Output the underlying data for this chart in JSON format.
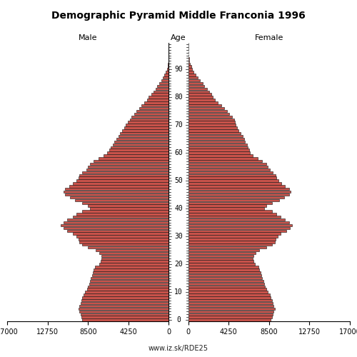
{
  "title": "Demographic Pyramid Middle Franconia 1996",
  "male_label": "Male",
  "female_label": "Female",
  "age_label": "Age",
  "url": "www.iz.sk/RDE25",
  "xlim": 17000,
  "bar_color": "#C8524A",
  "bar_edge_color": "#111111",
  "bar_linewidth": 0.4,
  "background_color": "#ffffff",
  "male": [
    9100,
    9200,
    9300,
    9400,
    9500,
    9400,
    9300,
    9200,
    9100,
    9000,
    8800,
    8600,
    8500,
    8400,
    8300,
    8200,
    8100,
    8000,
    7900,
    7800,
    7300,
    7200,
    7100,
    7100,
    7300,
    7700,
    8500,
    9100,
    9400,
    9500,
    9700,
    10100,
    10700,
    11100,
    11400,
    11100,
    10700,
    10100,
    9700,
    9100,
    8300,
    8500,
    9100,
    9900,
    10400,
    10900,
    11100,
    10900,
    10500,
    10100,
    9700,
    9500,
    9400,
    9100,
    8700,
    8500,
    8300,
    7900,
    7400,
    6900,
    6500,
    6300,
    6100,
    5900,
    5700,
    5500,
    5300,
    5100,
    4900,
    4700,
    4500,
    4300,
    4100,
    3900,
    3600,
    3400,
    3100,
    2900,
    2600,
    2300,
    2100,
    1800,
    1600,
    1400,
    1200,
    1000,
    800,
    600,
    450,
    300,
    200,
    130,
    80,
    50,
    30,
    15,
    8,
    4,
    2,
    1
  ],
  "female": [
    8700,
    8800,
    8900,
    9000,
    9100,
    9000,
    8900,
    8800,
    8700,
    8600,
    8400,
    8200,
    8100,
    8000,
    7900,
    7800,
    7700,
    7600,
    7500,
    7400,
    7000,
    6900,
    6800,
    6900,
    7100,
    7500,
    8200,
    8800,
    9100,
    9200,
    9400,
    9700,
    10300,
    10700,
    10900,
    10600,
    10200,
    9700,
    9300,
    8800,
    8000,
    8200,
    8800,
    9600,
    10100,
    10600,
    10800,
    10600,
    10200,
    9800,
    9500,
    9300,
    9200,
    8900,
    8600,
    8400,
    8200,
    7800,
    7300,
    6800,
    6500,
    6400,
    6300,
    6200,
    6000,
    5900,
    5700,
    5500,
    5300,
    5100,
    5000,
    4900,
    4800,
    4600,
    4300,
    4100,
    3800,
    3500,
    3100,
    2800,
    2600,
    2400,
    2200,
    2000,
    1700,
    1500,
    1200,
    1000,
    750,
    550,
    420,
    300,
    210,
    140,
    80,
    45,
    25,
    12,
    6,
    2
  ]
}
